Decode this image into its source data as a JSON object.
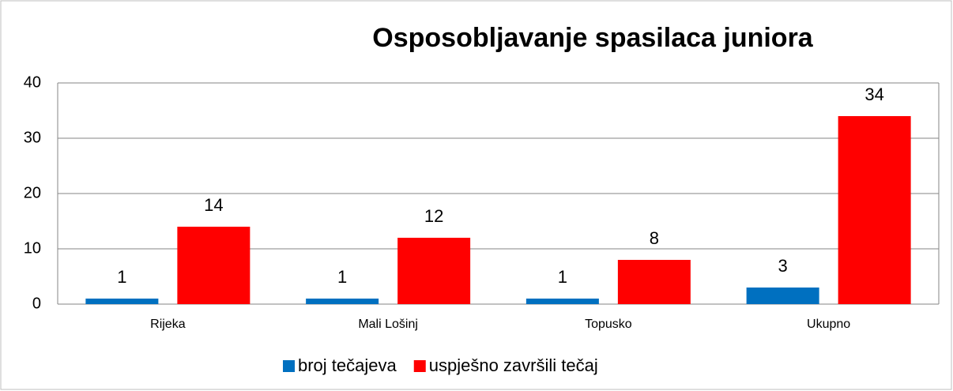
{
  "chart_data": {
    "type": "bar",
    "title": "Osposobljavanje spasilaca juniora",
    "categories": [
      "Rijeka",
      "Mali Lošinj",
      "Topusko",
      "Ukupno"
    ],
    "series": [
      {
        "name": "broj tečajeva",
        "color": "#0070c0",
        "values": [
          1,
          1,
          1,
          3
        ]
      },
      {
        "name": "uspješno završili tečaj",
        "color": "#ff0000",
        "values": [
          14,
          12,
          8,
          34
        ]
      }
    ],
    "ylim": [
      0,
      40
    ],
    "yticks": [
      0,
      10,
      20,
      30,
      40
    ],
    "grid": true,
    "legend": "bottom"
  }
}
